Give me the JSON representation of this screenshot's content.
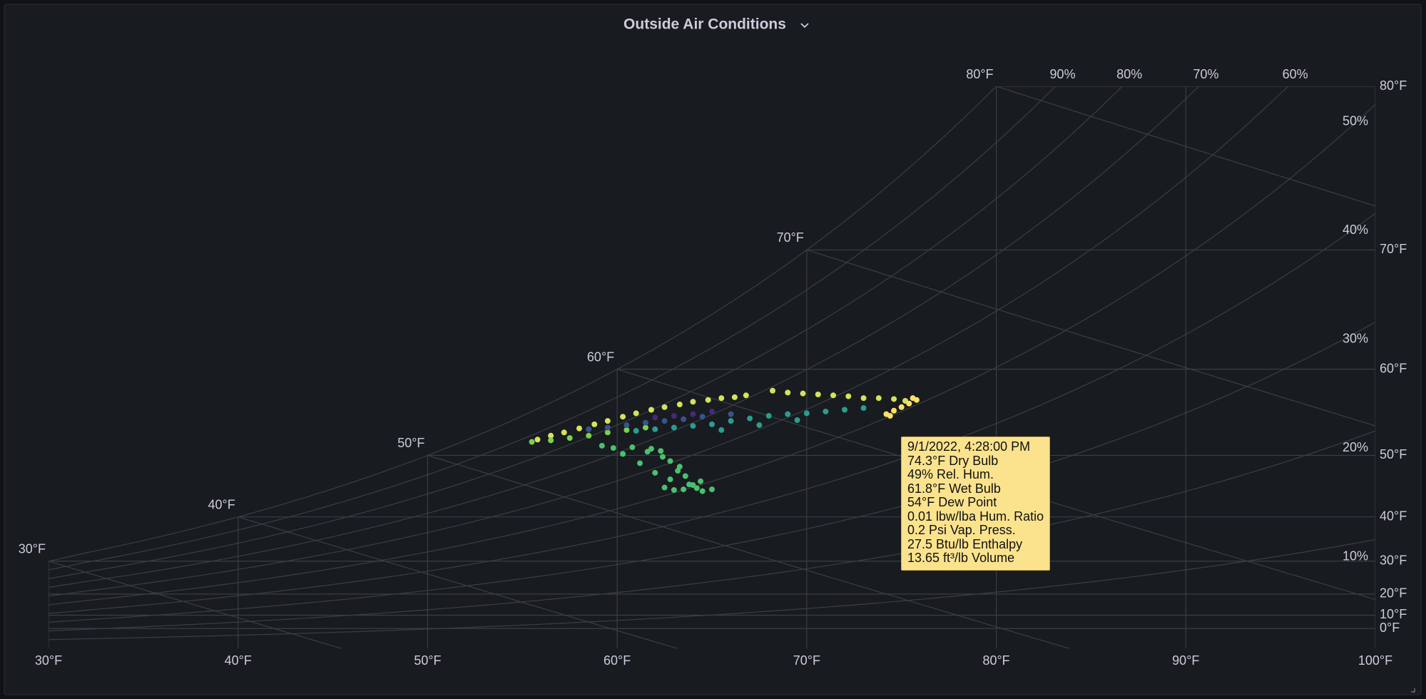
{
  "chart_data": {
    "type": "psychrometric",
    "title": "Outside Air Conditions",
    "xlim": [
      30,
      100
    ],
    "xticks": [
      {
        "value": 30,
        "label": "30°F"
      },
      {
        "value": 40,
        "label": "40°F"
      },
      {
        "value": 50,
        "label": "50°F"
      },
      {
        "value": 60,
        "label": "60°F"
      },
      {
        "value": 70,
        "label": "70°F"
      },
      {
        "value": 80,
        "label": "80°F"
      },
      {
        "value": 90,
        "label": "90°F"
      },
      {
        "value": 100,
        "label": "100°F"
      }
    ],
    "yticks": [
      {
        "value": 0,
        "label": "0°F"
      },
      {
        "value": 10,
        "label": "10°F"
      },
      {
        "value": 20,
        "label": "20°F"
      },
      {
        "value": 30,
        "label": "30°F"
      },
      {
        "value": 40,
        "label": "40°F"
      },
      {
        "value": 50,
        "label": "50°F"
      },
      {
        "value": 60,
        "label": "60°F"
      },
      {
        "value": 70,
        "label": "70°F"
      },
      {
        "value": 80,
        "label": "80°F"
      }
    ],
    "wet_bulb_lines": [
      {
        "value": 30,
        "label": "30°F"
      },
      {
        "value": 40,
        "label": "40°F"
      },
      {
        "value": 50,
        "label": "50°F"
      },
      {
        "value": 60,
        "label": "60°F"
      },
      {
        "value": 70,
        "label": "70°F"
      },
      {
        "value": 80,
        "label": "80°F"
      }
    ],
    "rh_curves": [
      {
        "value": 10,
        "label": "10%"
      },
      {
        "value": 20,
        "label": "20%"
      },
      {
        "value": 30,
        "label": "30%"
      },
      {
        "value": 40,
        "label": "40%"
      },
      {
        "value": 50,
        "label": "50%"
      },
      {
        "value": 60,
        "label": "60%"
      },
      {
        "value": 70,
        "label": "70%"
      },
      {
        "value": 80,
        "label": "80%"
      },
      {
        "value": 90,
        "label": "90%"
      }
    ],
    "grid": true,
    "series": [
      {
        "color": "#d4e35a",
        "x": [
          55.8,
          56.5,
          57.2,
          58,
          58.8,
          59.5,
          60.3,
          61,
          61.8,
          62.5,
          63.3,
          64,
          64.8,
          65.5,
          66.2,
          66.8,
          68.2,
          69,
          69.8,
          70.6,
          71.4,
          72.2,
          73,
          73.8,
          74.6,
          75.2
        ],
        "values": [
          52.1,
          52.6,
          53.0,
          53.5,
          54.0,
          54.4,
          54.9,
          55.3,
          55.7,
          56.0,
          56.3,
          56.6,
          56.8,
          57.0,
          57.1,
          57.3,
          57.8,
          57.6,
          57.5,
          57.4,
          57.3,
          57.2,
          57.0,
          57.0,
          56.9,
          56.7
        ]
      },
      {
        "color": "#7ad151",
        "x": [
          55.5,
          56.5,
          57.5,
          58.5,
          59.5,
          60.5,
          61.5
        ],
        "values": [
          51.8,
          52.0,
          52.3,
          52.6,
          53.0,
          53.3,
          53.6
        ]
      },
      {
        "color": "#4ac16d",
        "x": [
          59.2,
          59.8,
          60.3,
          60.8,
          61.2,
          61.6,
          62,
          62.4,
          62.8,
          63.2,
          63.6,
          64,
          64.4,
          62.5,
          63,
          63.5,
          64.2,
          61.8,
          62.3,
          62.8,
          63.3,
          63.8,
          64.5,
          65
        ],
        "values": [
          51.3,
          51.0,
          50.2,
          51.1,
          48.9,
          50.5,
          47.5,
          49.8,
          46.5,
          47.8,
          47.0,
          45.6,
          46.2,
          45.2,
          44.8,
          44.9,
          45.1,
          50.9,
          50.6,
          49.2,
          48.4,
          45.7,
          44.6,
          44.9
        ]
      },
      {
        "color": "#2a9d8f",
        "x": [
          61,
          62,
          63,
          64,
          65,
          66,
          67,
          68,
          69,
          70,
          71,
          72,
          73,
          65.5,
          67.5,
          69.5
        ],
        "values": [
          53.2,
          53.4,
          53.6,
          53.8,
          54.0,
          54.4,
          54.7,
          55.0,
          55.2,
          55.3,
          55.5,
          55.7,
          55.9,
          53.3,
          53.9,
          54.5
        ]
      },
      {
        "color": "#3b528b",
        "x": [
          58.5,
          59.5,
          60.5,
          61.5,
          62.5,
          63.5,
          64.5,
          66
        ],
        "values": [
          53.4,
          53.6,
          53.9,
          54.2,
          54.4,
          54.6,
          54.9,
          55.2
        ]
      },
      {
        "color": "#482878",
        "x": [
          62,
          63,
          64,
          65
        ],
        "values": [
          54.8,
          55.0,
          55.2,
          55.5
        ]
      },
      {
        "color": "#fde066",
        "x": [
          74.2,
          74.6,
          75,
          75.4,
          75.8,
          74.4,
          75.6
        ],
        "values": [
          55.2,
          55.6,
          56.0,
          56.4,
          56.8,
          55.0,
          57.0
        ]
      }
    ]
  },
  "tooltip": {
    "lines": [
      "9/1/2022, 4:28:00 PM",
      "74.3°F Dry Bulb",
      "49% Rel. Hum.",
      "61.8°F Wet Bulb",
      "54°F Dew Point",
      "0.01 lbw/lba Hum. Ratio",
      "0.2 Psi Vap. Press.",
      "27.5 Btu/lb Enthalpy",
      "13.65 ft³/lb Volume"
    ]
  }
}
